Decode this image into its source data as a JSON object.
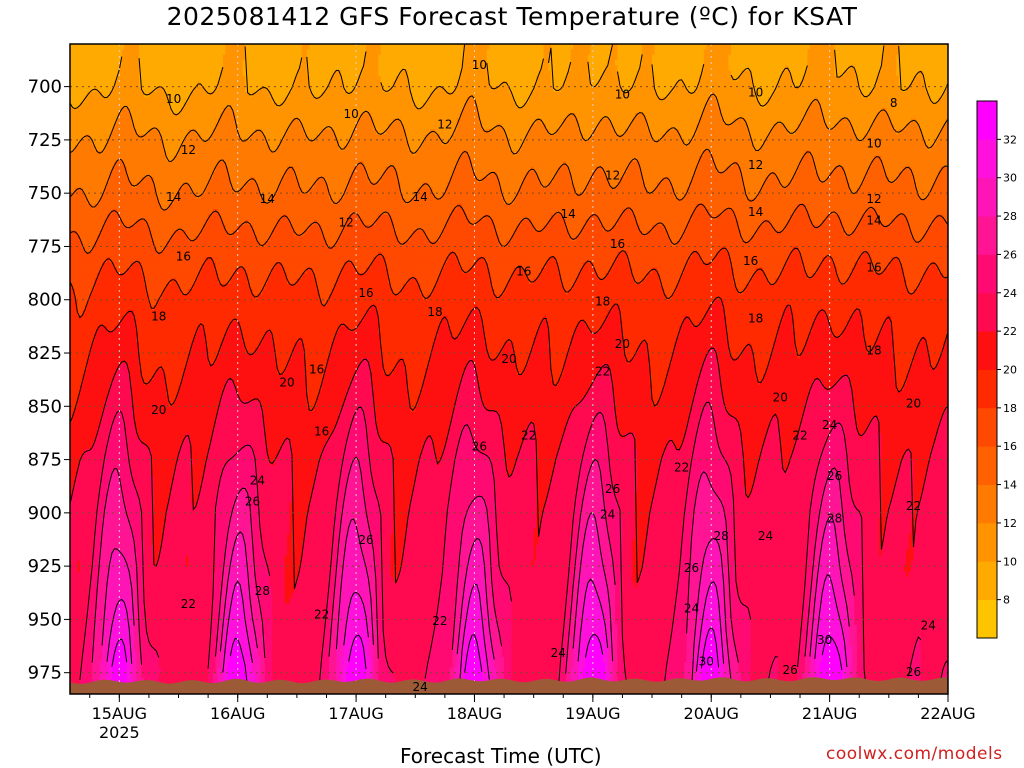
{
  "title": "2025081412 GFS Forecast Temperature (ºC) for KSAT",
  "xlabel": "Forecast Time (UTC)",
  "credit": "coolwx.com/models",
  "chart_data": {
    "type": "heatmap",
    "title": "2025081412 GFS Forecast Temperature (ºC) for KSAT",
    "xlabel": "Forecast Time (UTC)",
    "ylabel": "",
    "x_ticks": [
      {
        "label": "15AUG",
        "sub": "2025",
        "t": 10
      },
      {
        "label": "16AUG",
        "sub": "",
        "t": 34
      },
      {
        "label": "17AUG",
        "sub": "",
        "t": 58
      },
      {
        "label": "18AUG",
        "sub": "",
        "t": 82
      },
      {
        "label": "19AUG",
        "sub": "",
        "t": 106
      },
      {
        "label": "20AUG",
        "sub": "",
        "t": 130
      },
      {
        "label": "21AUG",
        "sub": "",
        "t": 154
      },
      {
        "label": "22AUG",
        "sub": "",
        "t": 178
      }
    ],
    "x_range_hours": [
      0,
      178
    ],
    "y_ticks": [
      700,
      725,
      750,
      775,
      800,
      825,
      850,
      875,
      900,
      925,
      950,
      975
    ],
    "y_range_hPa": [
      680,
      985
    ],
    "grid": true,
    "colorbar": {
      "levels": [
        6,
        8,
        10,
        12,
        14,
        16,
        18,
        20,
        22,
        24,
        26,
        28,
        30,
        32,
        34
      ],
      "labels": [
        8,
        10,
        12,
        14,
        16,
        18,
        20,
        22,
        24,
        26,
        28,
        30,
        32
      ],
      "colors": [
        "#ffc400",
        "#ffaa00",
        "#ff9400",
        "#ff7a00",
        "#ff6000",
        "#ff4800",
        "#ff2a00",
        "#ff1010",
        "#ff0a50",
        "#ff0a72",
        "#ff1494",
        "#ff14b8",
        "#ff10dc",
        "#ff00ff"
      ]
    },
    "profile": {
      "pressure_hPa": [
        690,
        700,
        725,
        750,
        775,
        800,
        825,
        850,
        875,
        900,
        925,
        950,
        975
      ],
      "night_temp_C": [
        9,
        9.5,
        12,
        14,
        16.5,
        18.5,
        19.5,
        20.5,
        21.5,
        22,
        22,
        22.5,
        23
      ],
      "day_temp_C": [
        10,
        10.5,
        12.5,
        14.5,
        17,
        19,
        21,
        23,
        25,
        27,
        29,
        31,
        33.5
      ]
    },
    "afternoon_peaks_hours": [
      10,
      34,
      58,
      82,
      106,
      130,
      154
    ],
    "contour_labels": [
      {
        "text": "10",
        "t": 21,
        "p": 706
      },
      {
        "text": "10",
        "t": 83,
        "p": 690
      },
      {
        "text": "10",
        "t": 57,
        "p": 713
      },
      {
        "text": "10",
        "t": 112,
        "p": 704
      },
      {
        "text": "10",
        "t": 139,
        "p": 703
      },
      {
        "text": "8",
        "t": 167,
        "p": 708
      },
      {
        "text": "10",
        "t": 163,
        "p": 727
      },
      {
        "text": "12",
        "t": 24,
        "p": 730
      },
      {
        "text": "12",
        "t": 76,
        "p": 718
      },
      {
        "text": "12",
        "t": 110,
        "p": 742
      },
      {
        "text": "12",
        "t": 139,
        "p": 737
      },
      {
        "text": "12",
        "t": 163,
        "p": 753
      },
      {
        "text": "14",
        "t": 21,
        "p": 752
      },
      {
        "text": "14",
        "t": 40,
        "p": 753
      },
      {
        "text": "14",
        "t": 71,
        "p": 752
      },
      {
        "text": "14",
        "t": 101,
        "p": 760
      },
      {
        "text": "14",
        "t": 139,
        "p": 759
      },
      {
        "text": "14",
        "t": 163,
        "p": 763
      },
      {
        "text": "16",
        "t": 23,
        "p": 780
      },
      {
        "text": "12",
        "t": 56,
        "p": 764
      },
      {
        "text": "16",
        "t": 111,
        "p": 774
      },
      {
        "text": "16",
        "t": 92,
        "p": 787
      },
      {
        "text": "16",
        "t": 138,
        "p": 782
      },
      {
        "text": "16",
        "t": 163,
        "p": 785
      },
      {
        "text": "16",
        "t": 60,
        "p": 797
      },
      {
        "text": "18",
        "t": 18,
        "p": 808
      },
      {
        "text": "18",
        "t": 74,
        "p": 806
      },
      {
        "text": "18",
        "t": 108,
        "p": 801
      },
      {
        "text": "18",
        "t": 139,
        "p": 809
      },
      {
        "text": "18",
        "t": 163,
        "p": 824
      },
      {
        "text": "16",
        "t": 50,
        "p": 833
      },
      {
        "text": "20",
        "t": 44,
        "p": 839
      },
      {
        "text": "20",
        "t": 89,
        "p": 828
      },
      {
        "text": "20",
        "t": 112,
        "p": 821
      },
      {
        "text": "20",
        "t": 18,
        "p": 852
      },
      {
        "text": "20",
        "t": 144,
        "p": 846
      },
      {
        "text": "20",
        "t": 171,
        "p": 849
      },
      {
        "text": "22",
        "t": 108,
        "p": 834
      },
      {
        "text": "16",
        "t": 51,
        "p": 862
      },
      {
        "text": "22",
        "t": 93,
        "p": 864
      },
      {
        "text": "22",
        "t": 124,
        "p": 879
      },
      {
        "text": "22",
        "t": 148,
        "p": 864
      },
      {
        "text": "24",
        "t": 154,
        "p": 859
      },
      {
        "text": "26",
        "t": 83,
        "p": 869
      },
      {
        "text": "24",
        "t": 38,
        "p": 885
      },
      {
        "text": "26",
        "t": 155,
        "p": 883
      },
      {
        "text": "26",
        "t": 37,
        "p": 895
      },
      {
        "text": "22",
        "t": 171,
        "p": 897
      },
      {
        "text": "26",
        "t": 110,
        "p": 889
      },
      {
        "text": "24",
        "t": 109,
        "p": 901
      },
      {
        "text": "28",
        "t": 132,
        "p": 911
      },
      {
        "text": "24",
        "t": 141,
        "p": 911
      },
      {
        "text": "28",
        "t": 155,
        "p": 903
      },
      {
        "text": "26",
        "t": 60,
        "p": 913
      },
      {
        "text": "26",
        "t": 126,
        "p": 926
      },
      {
        "text": "28",
        "t": 39,
        "p": 937
      },
      {
        "text": "22",
        "t": 24,
        "p": 943
      },
      {
        "text": "24",
        "t": 126,
        "p": 945
      },
      {
        "text": "22",
        "t": 51,
        "p": 948
      },
      {
        "text": "22",
        "t": 75,
        "p": 951
      },
      {
        "text": "24",
        "t": 174,
        "p": 953
      },
      {
        "text": "30",
        "t": 153,
        "p": 960
      },
      {
        "text": "24",
        "t": 99,
        "p": 966
      },
      {
        "text": "30",
        "t": 129,
        "p": 970
      },
      {
        "text": "26",
        "t": 146,
        "p": 974
      },
      {
        "text": "26",
        "t": 171,
        "p": 975
      },
      {
        "text": "24",
        "t": 71,
        "p": 982
      }
    ]
  }
}
